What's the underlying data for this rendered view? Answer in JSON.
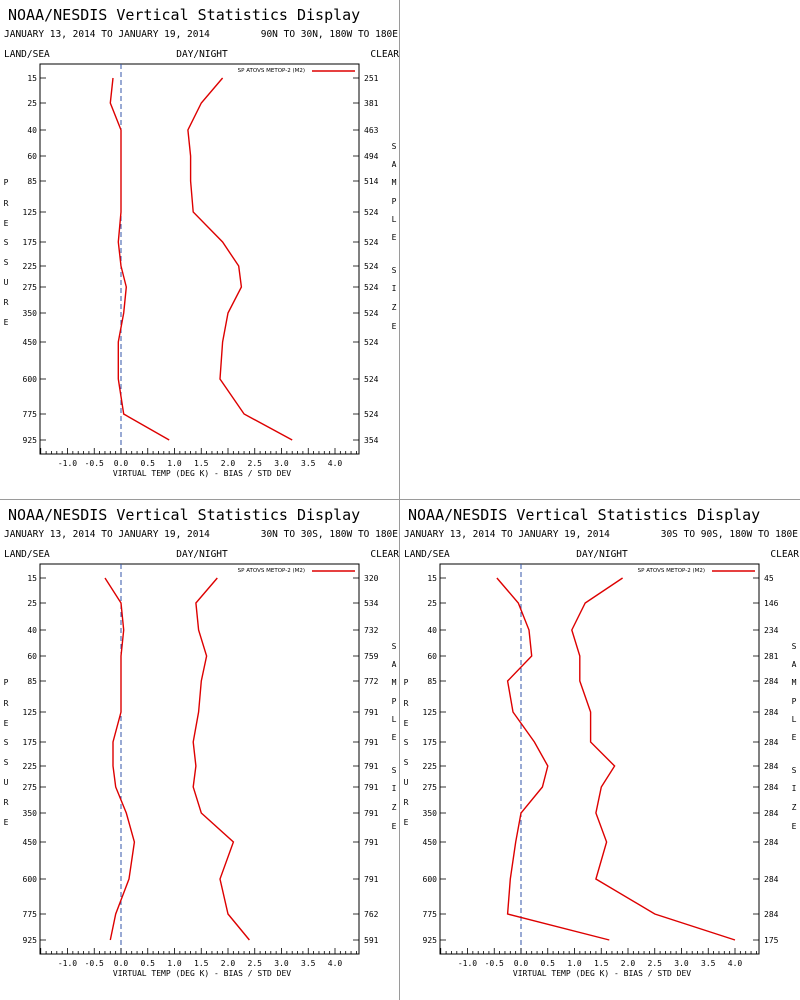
{
  "page_title": "NOAA/NESDIS Vertical Statistics Display",
  "colors": {
    "series": "#dd0000",
    "axes": "#000000",
    "zero_line": "#3355aa",
    "divider": "#9a9a9a"
  },
  "chart_data": [
    {
      "type": "line",
      "title": "NOAA/NESDIS Vertical Statistics Display",
      "subtitle_dates": "JANUARY 13, 2014 TO JANUARY 19, 2014",
      "subtitle_region": "90N TO 30N, 180W TO 180E",
      "left_header": "LAND/SEA",
      "center_header": "DAY/NIGHT",
      "right_header": "CLEAR",
      "ylabel": "PRESSURE",
      "right_label": "SAMPLE SIZE",
      "xlabel": "VIRTUAL TEMP (DEG K) - BIAS / STD DEV",
      "legend": "SP ATOVS METOP-2 (M2)",
      "xlim": [
        -1.5,
        4.5
      ],
      "x_ticks": [
        "-1.0",
        "-0.5",
        "0.0",
        "0.5",
        "1.0",
        "1.5",
        "2.0",
        "2.5",
        "3.0",
        "3.5",
        "4.0"
      ],
      "pressure_levels": [
        "15",
        "25",
        "40",
        "60",
        "85",
        "125",
        "175",
        "225",
        "275",
        "350",
        "450",
        "600",
        "775",
        "925"
      ],
      "sample_size": [
        "251",
        "381",
        "463",
        "494",
        "514",
        "524",
        "524",
        "524",
        "524",
        "524",
        "524",
        "524",
        "524",
        "354"
      ],
      "series": [
        {
          "role": "bias",
          "values": [
            -0.15,
            -0.2,
            0.0,
            0.0,
            0.0,
            0.0,
            -0.05,
            0.0,
            0.1,
            0.05,
            -0.05,
            -0.05,
            0.05,
            0.9
          ]
        },
        {
          "role": "std_dev",
          "values": [
            1.9,
            1.5,
            1.25,
            1.3,
            1.3,
            1.35,
            1.9,
            2.2,
            2.25,
            2.0,
            1.9,
            1.85,
            2.3,
            3.2
          ]
        }
      ]
    },
    {
      "type": "line",
      "title": "NOAA/NESDIS Vertical Statistics Display",
      "subtitle_dates": "JANUARY 13, 2014 TO JANUARY 19, 2014",
      "subtitle_region": "30N TO 30S, 180W TO 180E",
      "left_header": "LAND/SEA",
      "center_header": "DAY/NIGHT",
      "right_header": "CLEAR",
      "ylabel": "PRESSURE",
      "right_label": "SAMPLE SIZE",
      "xlabel": "VIRTUAL TEMP (DEG K) - BIAS / STD DEV",
      "legend": "SP ATOVS METOP-2 (M2)",
      "xlim": [
        -1.5,
        4.5
      ],
      "x_ticks": [
        "-1.0",
        "-0.5",
        "0.0",
        "0.5",
        "1.0",
        "1.5",
        "2.0",
        "2.5",
        "3.0",
        "3.5",
        "4.0"
      ],
      "pressure_levels": [
        "15",
        "25",
        "40",
        "60",
        "85",
        "125",
        "175",
        "225",
        "275",
        "350",
        "450",
        "600",
        "775",
        "925"
      ],
      "sample_size": [
        "320",
        "534",
        "732",
        "759",
        "772",
        "791",
        "791",
        "791",
        "791",
        "791",
        "791",
        "791",
        "762",
        "591"
      ],
      "series": [
        {
          "role": "bias",
          "values": [
            -0.3,
            0.0,
            0.05,
            0.0,
            0.0,
            0.0,
            -0.15,
            -0.15,
            -0.1,
            0.1,
            0.25,
            0.15,
            -0.1,
            -0.2
          ]
        },
        {
          "role": "std_dev",
          "values": [
            1.8,
            1.4,
            1.45,
            1.6,
            1.5,
            1.45,
            1.35,
            1.4,
            1.35,
            1.5,
            2.1,
            1.85,
            2.0,
            2.4
          ]
        }
      ]
    },
    {
      "type": "line",
      "title": "NOAA/NESDIS Vertical Statistics Display",
      "subtitle_dates": "JANUARY 13, 2014 TO JANUARY 19, 2014",
      "subtitle_region": "30S TO 90S, 180W TO 180E",
      "left_header": "LAND/SEA",
      "center_header": "DAY/NIGHT",
      "right_header": "CLEAR",
      "ylabel": "PRESSURE",
      "right_label": "SAMPLE SIZE",
      "xlabel": "VIRTUAL TEMP (DEG K) - BIAS / STD DEV",
      "legend": "SP ATOVS METOP-2 (M2)",
      "xlim": [
        -1.5,
        4.5
      ],
      "x_ticks": [
        "-1.0",
        "-0.5",
        "0.0",
        "0.5",
        "1.0",
        "1.5",
        "2.0",
        "2.5",
        "3.0",
        "3.5",
        "4.0"
      ],
      "pressure_levels": [
        "15",
        "25",
        "40",
        "60",
        "85",
        "125",
        "175",
        "225",
        "275",
        "350",
        "450",
        "600",
        "775",
        "925"
      ],
      "sample_size": [
        "45",
        "146",
        "234",
        "281",
        "284",
        "284",
        "284",
        "284",
        "284",
        "284",
        "284",
        "284",
        "284",
        "175"
      ],
      "series": [
        {
          "role": "bias",
          "values": [
            -0.45,
            -0.05,
            0.15,
            0.2,
            -0.25,
            -0.15,
            0.25,
            0.5,
            0.4,
            0.0,
            -0.1,
            -0.2,
            -0.25,
            1.65
          ]
        },
        {
          "role": "std_dev",
          "values": [
            1.9,
            1.2,
            0.95,
            1.1,
            1.1,
            1.3,
            1.3,
            1.75,
            1.5,
            1.4,
            1.6,
            1.4,
            2.5,
            4.0
          ]
        }
      ]
    }
  ]
}
